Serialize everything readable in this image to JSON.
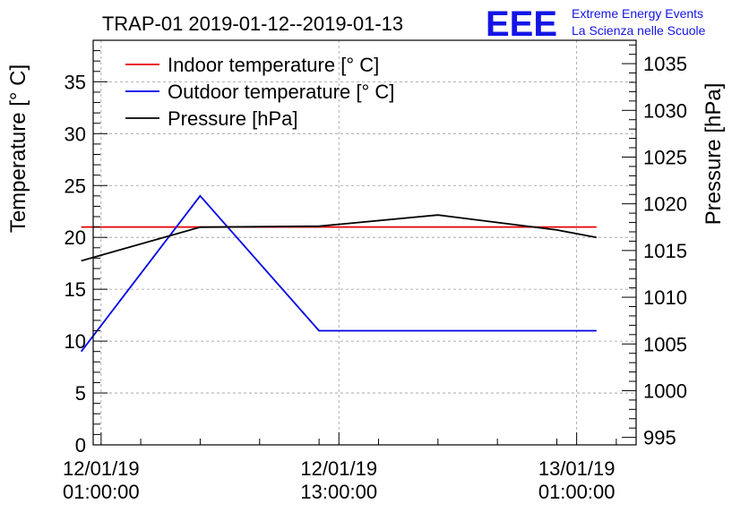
{
  "logo": {
    "mark": "EEE",
    "line1": "Extreme Energy Events",
    "line2": "La Scienza nelle Scuole",
    "color": "#1414e6"
  },
  "chart_data": {
    "type": "line",
    "title": "TRAP-01 2019-01-12--2019-01-13",
    "ylabel": "Temperature [° C]",
    "y2label": "Pressure [hPa]",
    "xlabel": "",
    "x": [
      "12/01/19 01:00:00",
      "12/01/19 13:00:00",
      "13/01/19 01:00:00"
    ],
    "x_ticks": [
      {
        "date": "12/01/19",
        "time": "01:00:00"
      },
      {
        "date": "12/01/19",
        "time": "13:00:00"
      },
      {
        "date": "13/01/19",
        "time": "01:00:00"
      }
    ],
    "xlim": [
      "12/01/19 00:36:00",
      "13/01/19 04:00:00"
    ],
    "ylim": [
      0,
      39
    ],
    "y_ticks": [
      0,
      5,
      10,
      15,
      20,
      25,
      30,
      35
    ],
    "y2lim": [
      994.2,
      1037.5
    ],
    "y2_ticks": [
      995,
      1000,
      1005,
      1010,
      1015,
      1020,
      1025,
      1030,
      1035
    ],
    "grid": true,
    "legend_position": "top-left",
    "series": [
      {
        "name": "Indoor temperature [° C]",
        "axis": "left",
        "color": "#e60000",
        "points": [
          [
            "12/01/19 00:00",
            21.0
          ],
          [
            "12/01/19 06:00",
            21.0
          ],
          [
            "12/01/19 12:00",
            21.0
          ],
          [
            "12/01/19 18:00",
            21.0
          ],
          [
            "13/01/19 00:00",
            21.0
          ],
          [
            "13/01/19 02:00",
            21.0
          ]
        ]
      },
      {
        "name": "Outdoor temperature [° C]",
        "axis": "left",
        "color": "#0000e6",
        "points": [
          [
            "12/01/19 00:00",
            9.0
          ],
          [
            "12/01/19 06:00",
            24.0
          ],
          [
            "12/01/19 12:00",
            11.0
          ],
          [
            "12/01/19 18:00",
            11.0
          ],
          [
            "13/01/19 00:00",
            11.0
          ],
          [
            "13/01/19 02:00",
            11.0
          ]
        ]
      },
      {
        "name": "Pressure [hPa]",
        "axis": "right",
        "color": "#000000",
        "points": [
          [
            "12/01/19 00:00",
            1013.9
          ],
          [
            "12/01/19 06:00",
            1017.5
          ],
          [
            "12/01/19 12:00",
            1017.6
          ],
          [
            "12/01/19 18:00",
            1018.8
          ],
          [
            "13/01/19 00:00",
            1017.2
          ],
          [
            "13/01/19 02:00",
            1016.4
          ]
        ]
      }
    ]
  }
}
